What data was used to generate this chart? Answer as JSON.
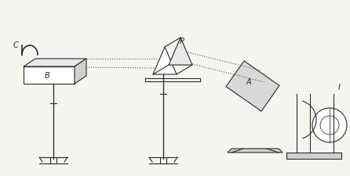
{
  "bg_color": "#f5f5f0",
  "line_color": "#2a2a2a",
  "dot_color": "#555555",
  "label_C": "C",
  "label_B": "B",
  "label_P": "P",
  "label_A": "A",
  "label_I": "I",
  "figsize": [
    4.46,
    2.25
  ],
  "dpi": 100
}
